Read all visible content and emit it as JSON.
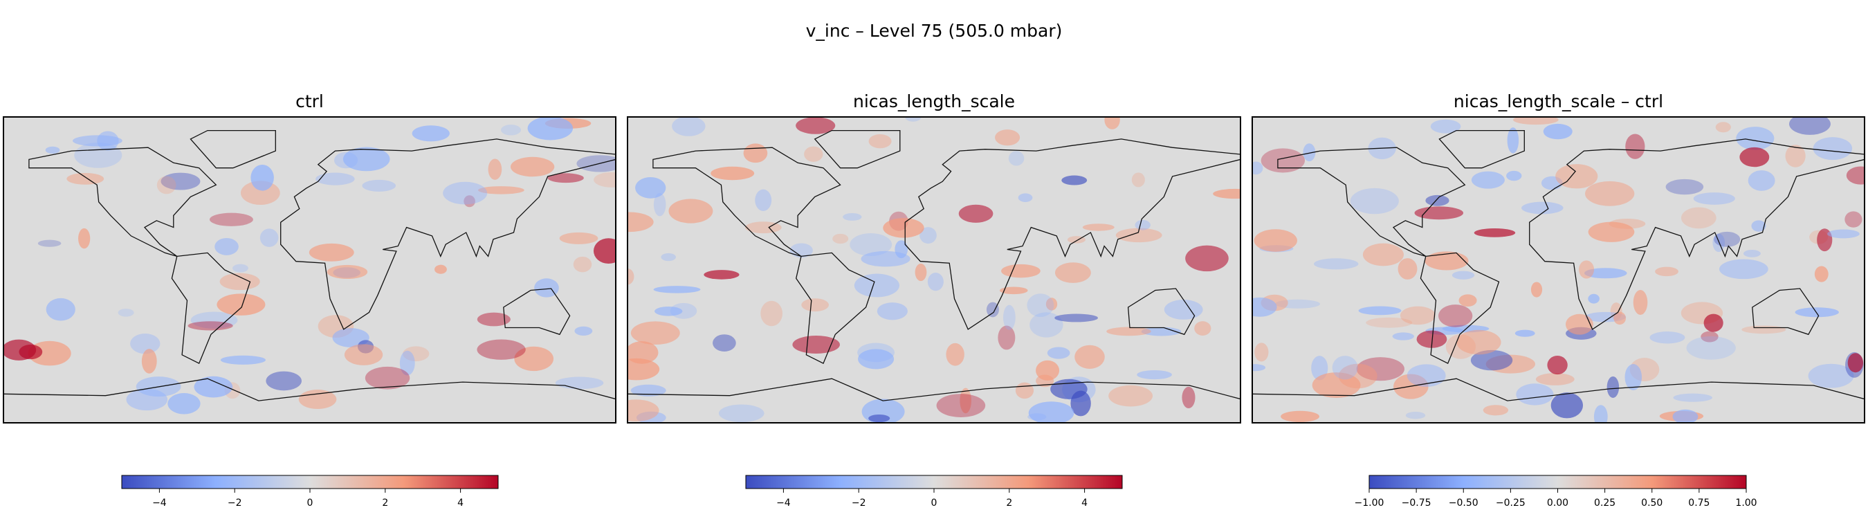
{
  "title": "v_inc – Level 75 (505.0 mbar)",
  "colormap": [
    "#3b4cc0",
    "#8db0fe",
    "#dddddd",
    "#f49a7b",
    "#b40426"
  ],
  "chart_data": [
    {
      "type": "map",
      "title": "ctrl",
      "clim": [
        -5,
        5
      ],
      "cticks": [
        {
          "value": -4,
          "label": "−4"
        },
        {
          "value": -2,
          "label": "−2"
        },
        0,
        2,
        4
      ]
    },
    {
      "type": "map",
      "title": "nicas_length_scale",
      "clim": [
        -5,
        5
      ],
      "cticks": [
        {
          "value": -4,
          "label": "−4"
        },
        {
          "value": -2,
          "label": "−2"
        },
        0,
        2,
        4
      ]
    },
    {
      "type": "map",
      "title": "nicas_length_scale – ctrl",
      "clim": [
        -1,
        1
      ],
      "cticks": [
        {
          "value": -1,
          "label": "−1.00"
        },
        {
          "value": -0.75,
          "label": "−0.75"
        },
        {
          "value": -0.5,
          "label": "−0.50"
        },
        {
          "value": -0.25,
          "label": "−0.25"
        },
        {
          "value": 0,
          "label": "0.00"
        },
        {
          "value": 0.25,
          "label": "0.25"
        },
        {
          "value": 0.5,
          "label": "0.50"
        },
        {
          "value": 0.75,
          "label": "0.75"
        },
        {
          "value": 1,
          "label": "1.00"
        }
      ]
    }
  ]
}
